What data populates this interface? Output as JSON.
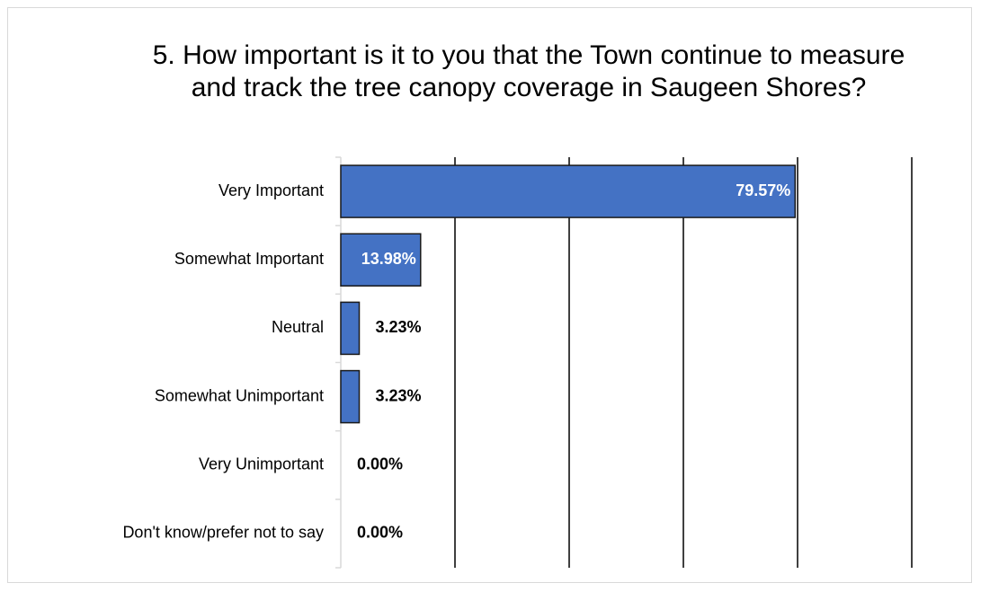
{
  "chart_data": {
    "type": "bar",
    "orientation": "horizontal",
    "title": "5. How important is it to you that the Town continue to measure and track the tree canopy coverage in Saugeen Shores?",
    "categories": [
      "Very Important",
      "Somewhat Important",
      "Neutral",
      "Somewhat Unimportant",
      "Very Unimportant",
      "Don't know/prefer not to say"
    ],
    "values": [
      79.57,
      13.98,
      3.23,
      3.23,
      0,
      0
    ],
    "value_labels": [
      "79.57%",
      "13.98%",
      "3.23%",
      "3.23%",
      "0.00%",
      "0.00%"
    ],
    "color": "#4472c4",
    "xlim": [
      0,
      100
    ],
    "xticks": [
      0,
      20,
      40,
      60,
      80,
      100
    ],
    "grid": true
  }
}
